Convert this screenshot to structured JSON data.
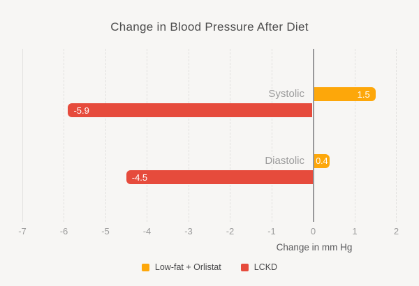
{
  "title": "Change in Blood Pressure After Diet",
  "chart_data": {
    "type": "bar",
    "orientation": "horizontal",
    "title": "Change in Blood Pressure After Diet",
    "categories": [
      "Systolic",
      "Diastolic"
    ],
    "series": [
      {
        "name": "Low-fat + Orlistat",
        "color": "#fda70a",
        "values": [
          1.5,
          0.4
        ],
        "labels": [
          "1.5",
          "0.4"
        ]
      },
      {
        "name": "LCKD",
        "color": "#e64b3c",
        "values": [
          -5.9,
          -4.5
        ],
        "labels": [
          "-5.9",
          "-4.5"
        ]
      }
    ],
    "xlabel": "Change in mm Hg",
    "xlim": [
      -7,
      2
    ],
    "xticks": [
      -7,
      -6,
      -5,
      -4,
      -3,
      -2,
      -1,
      0,
      1,
      2
    ],
    "grid": true,
    "legend_position": "bottom"
  },
  "colors": {
    "background": "#f7f6f4",
    "orange": "#fda70a",
    "red": "#e64b3c",
    "title_text": "#4c4c4c",
    "category_text": "#9b9b9b",
    "tick_text": "#9a9a9a",
    "axis_title_text": "#59595b",
    "legend_text": "#48484a",
    "gridline": "#e2e1df",
    "zero_line": "#98989a",
    "bar_value_text": "#ffffff"
  }
}
